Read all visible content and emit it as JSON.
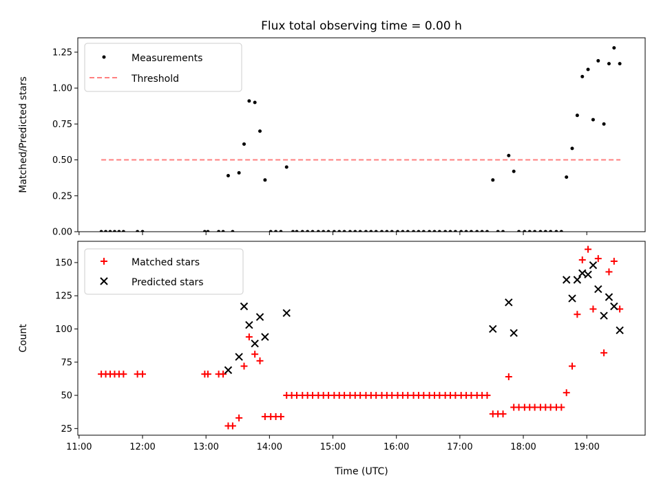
{
  "chart_data": {
    "title": "Flux total observing time = 0.00 h",
    "xlabel": "Time (UTC)",
    "x_ticks": [
      "11:00",
      "12:00",
      "13:00",
      "14:00",
      "15:00",
      "16:00",
      "17:00",
      "18:00",
      "19:00"
    ],
    "x_tick_hours": [
      11,
      12,
      13,
      14,
      15,
      16,
      17,
      18,
      19
    ],
    "xlim_hours": [
      10.98,
      19.92
    ],
    "colors": {
      "measurements": "#000000",
      "threshold": "#ff7f7f",
      "matched": "#ff0000",
      "predicted": "#000000"
    },
    "panels": [
      {
        "type": "scatter",
        "ylabel": "Matched/Predicted stars",
        "ylim": [
          0,
          1.35
        ],
        "y_ticks": [
          "0.00",
          "0.25",
          "0.50",
          "0.75",
          "1.00",
          "1.25"
        ],
        "y_tick_values": [
          0,
          0.25,
          0.5,
          0.75,
          1.0,
          1.25
        ],
        "legend": {
          "position": "top-left",
          "entries": [
            "Measurements",
            "Threshold"
          ]
        },
        "threshold": {
          "name": "Threshold",
          "value": 0.5,
          "x_range_hours": [
            11.35,
            19.53
          ],
          "style": "dashed"
        },
        "series": [
          {
            "name": "Measurements",
            "marker": "dot",
            "x_hours": [
              11.35,
              11.42,
              11.49,
              11.56,
              11.63,
              11.7,
              11.92,
              12.0,
              12.98,
              13.03,
              13.2,
              13.27,
              13.35,
              13.42,
              13.52,
              13.6,
              13.68,
              13.77,
              13.85,
              13.93,
              14.02,
              14.1,
              14.18,
              14.27,
              14.37,
              14.43,
              14.52,
              14.6,
              14.68,
              14.77,
              14.85,
              14.93,
              15.02,
              15.1,
              15.18,
              15.27,
              15.35,
              15.43,
              15.52,
              15.6,
              15.68,
              15.77,
              15.85,
              15.93,
              16.02,
              16.1,
              16.18,
              16.27,
              16.35,
              16.43,
              16.52,
              16.6,
              16.68,
              16.77,
              16.85,
              16.93,
              17.02,
              17.1,
              17.18,
              17.27,
              17.35,
              17.43,
              17.52,
              17.6,
              17.68,
              17.77,
              17.85,
              17.93,
              18.02,
              18.1,
              18.18,
              18.27,
              18.35,
              18.43,
              18.52,
              18.6,
              18.68,
              18.77,
              18.85,
              18.93,
              19.02,
              19.1,
              19.18,
              19.27,
              19.35,
              19.43,
              19.52
            ],
            "y": [
              0,
              0,
              0,
              0,
              0,
              0,
              0,
              0,
              0,
              0,
              0,
              0,
              0.39,
              0,
              0.41,
              0.61,
              0.91,
              0.9,
              0.7,
              0.36,
              0,
              0,
              0,
              0.45,
              0,
              0,
              0,
              0,
              0,
              0,
              0,
              0,
              0,
              0,
              0,
              0,
              0,
              0,
              0,
              0,
              0,
              0,
              0,
              0,
              0,
              0,
              0,
              0,
              0,
              0,
              0,
              0,
              0,
              0,
              0,
              0,
              0,
              0,
              0,
              0,
              0,
              0,
              0.36,
              0,
              0,
              0.53,
              0.42,
              0,
              0,
              0,
              0,
              0,
              0,
              0,
              0,
              0,
              0.38,
              0.58,
              0.81,
              1.08,
              1.13,
              0.78,
              1.19,
              0.75,
              1.17,
              1.28,
              1.17
            ]
          }
        ]
      },
      {
        "type": "scatter",
        "ylabel": "Count",
        "ylim": [
          20,
          166
        ],
        "y_ticks": [
          "25",
          "50",
          "75",
          "100",
          "125",
          "150"
        ],
        "y_tick_values": [
          25,
          50,
          75,
          100,
          125,
          150
        ],
        "legend": {
          "position": "top-left",
          "entries": [
            "Matched stars",
            "Predicted stars"
          ]
        },
        "series": [
          {
            "name": "Matched stars",
            "marker": "plus",
            "x_hours": [
              11.35,
              11.42,
              11.49,
              11.56,
              11.63,
              11.7,
              11.92,
              12.0,
              12.98,
              13.03,
              13.2,
              13.27,
              13.35,
              13.42,
              13.52,
              13.6,
              13.68,
              13.77,
              13.85,
              13.93,
              14.02,
              14.1,
              14.18,
              14.27,
              14.35,
              14.43,
              14.52,
              14.6,
              14.68,
              14.77,
              14.85,
              14.93,
              15.02,
              15.1,
              15.18,
              15.27,
              15.35,
              15.43,
              15.52,
              15.6,
              15.68,
              15.77,
              15.85,
              15.93,
              16.02,
              16.1,
              16.18,
              16.27,
              16.35,
              16.43,
              16.52,
              16.6,
              16.68,
              16.77,
              16.85,
              16.93,
              17.02,
              17.1,
              17.18,
              17.27,
              17.35,
              17.43,
              17.52,
              17.6,
              17.68,
              17.77,
              17.85,
              17.93,
              18.02,
              18.1,
              18.18,
              18.27,
              18.35,
              18.43,
              18.52,
              18.6,
              18.68,
              18.77,
              18.85,
              18.93,
              19.02,
              19.1,
              19.18,
              19.27,
              19.35,
              19.43,
              19.52
            ],
            "y": [
              66,
              66,
              66,
              66,
              66,
              66,
              66,
              66,
              66,
              66,
              66,
              66,
              27,
              27,
              33,
              72,
              94,
              81,
              76,
              34,
              34,
              34,
              34,
              50,
              50,
              50,
              50,
              50,
              50,
              50,
              50,
              50,
              50,
              50,
              50,
              50,
              50,
              50,
              50,
              50,
              50,
              50,
              50,
              50,
              50,
              50,
              50,
              50,
              50,
              50,
              50,
              50,
              50,
              50,
              50,
              50,
              50,
              50,
              50,
              50,
              50,
              50,
              36,
              36,
              36,
              64,
              41,
              41,
              41,
              41,
              41,
              41,
              41,
              41,
              41,
              41,
              52,
              72,
              111,
              152,
              160,
              115,
              153,
              82,
              143,
              151,
              115
            ]
          },
          {
            "name": "Predicted stars",
            "marker": "x",
            "x_hours": [
              13.35,
              13.52,
              13.6,
              13.68,
              13.77,
              13.85,
              13.93,
              14.27,
              17.52,
              17.77,
              17.85,
              18.68,
              18.77,
              18.85,
              18.93,
              19.02,
              19.1,
              19.18,
              19.27,
              19.35,
              19.43,
              19.52
            ],
            "y": [
              69,
              79,
              117,
              103,
              89,
              109,
              94,
              112,
              100,
              120,
              97,
              137,
              123,
              137,
              142,
              141,
              148,
              130,
              110,
              124,
              117,
              99
            ]
          }
        ]
      }
    ]
  }
}
